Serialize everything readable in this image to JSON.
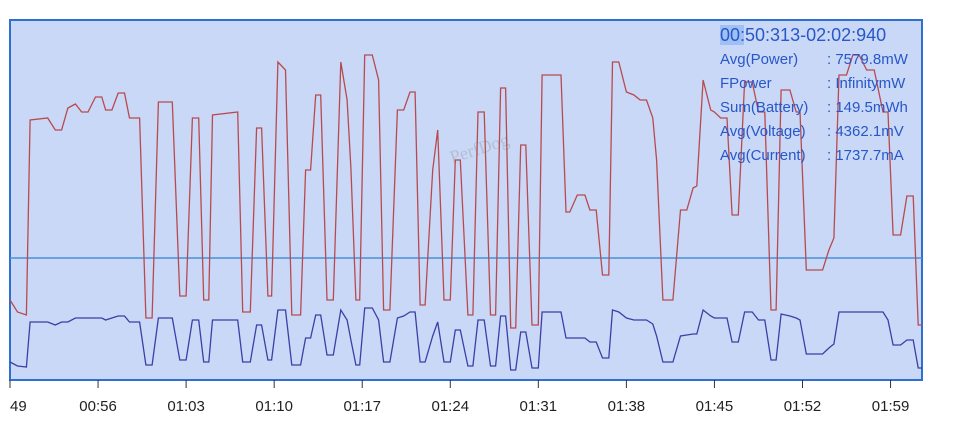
{
  "chart_data": {
    "type": "line",
    "summary_title": "00:50:313-02:02:940",
    "summary": [
      {
        "label": "Avg(Power)",
        "value": ": 7579.8mW"
      },
      {
        "label": "FPower",
        "value": ": InfinitymW"
      },
      {
        "label": "Sum(Battery)",
        "value": ": 149.5mWh"
      },
      {
        "label": "Avg(Voltage)",
        "value": ": 4362.1mV"
      },
      {
        "label": "Avg(Current)",
        "value": ": 1737.7mA"
      }
    ],
    "watermark": "PerfDog",
    "xlim": [
      49,
      121.5
    ],
    "xticks": [
      {
        "value": 49,
        "label": "49"
      },
      {
        "value": 56,
        "label": "00:56"
      },
      {
        "value": 63,
        "label": "01:03"
      },
      {
        "value": 70,
        "label": "01:10"
      },
      {
        "value": 77,
        "label": "01:17"
      },
      {
        "value": 84,
        "label": "01:24"
      },
      {
        "value": 91,
        "label": "01:31"
      },
      {
        "value": 98,
        "label": "01:38"
      },
      {
        "value": 105,
        "label": "01:45"
      },
      {
        "value": 112,
        "label": "01:52"
      },
      {
        "value": 119,
        "label": "01:59"
      }
    ],
    "ylim": [
      0,
      360
    ],
    "avg_line": {
      "value": 122,
      "color": "#4a90d9"
    },
    "x": [
      49.0,
      49.6,
      50.3,
      50.6,
      52.0,
      52.6,
      53.1,
      53.6,
      54.2,
      54.7,
      55.2,
      55.8,
      56.3,
      56.6,
      57.1,
      57.6,
      58.1,
      58.5,
      59.3,
      59.8,
      60.3,
      60.8,
      61.9,
      62.5,
      63.0,
      63.5,
      64.0,
      64.4,
      64.8,
      65.1,
      67.1,
      67.5,
      68.1,
      68.6,
      69.0,
      69.5,
      69.8,
      70.3,
      70.9,
      71.4,
      72.1,
      72.5,
      72.9,
      73.3,
      73.7,
      74.2,
      74.7,
      75.3,
      75.8,
      76.1,
      76.5,
      76.8,
      77.2,
      77.8,
      78.3,
      78.7,
      79.2,
      79.8,
      80.3,
      80.8,
      81.2,
      81.6,
      82.0,
      82.6,
      83.0,
      83.5,
      84.0,
      84.4,
      84.8,
      85.4,
      85.8,
      86.2,
      86.7,
      87.2,
      87.6,
      88.0,
      88.4,
      88.8,
      89.2,
      89.6,
      90.0,
      90.5,
      91.0,
      91.3,
      92.8,
      93.2,
      93.5,
      94.1,
      94.7,
      95.1,
      95.6,
      96.1,
      96.6,
      96.9,
      97.4,
      98.0,
      98.6,
      99.1,
      99.6,
      100.1,
      100.4,
      100.9,
      101.3,
      101.7,
      102.3,
      102.8,
      103.3,
      103.6,
      104.1,
      104.7,
      105.0,
      105.5,
      106.0,
      106.4,
      106.9,
      107.4,
      108.0,
      108.5,
      109.0,
      109.5,
      109.9,
      110.3,
      111.0,
      111.5,
      111.8,
      112.3,
      113.6,
      114.1,
      114.5,
      114.9,
      115.5,
      116.0,
      116.5,
      117.1,
      117.7,
      118.4,
      118.8,
      119.2,
      119.8,
      120.3,
      120.8,
      121.2,
      121.5
    ],
    "series": [
      {
        "name": "Power",
        "color": "#b84a4f",
        "values": [
          80,
          68,
          65,
          260,
          262,
          250,
          250,
          272,
          276,
          268,
          268,
          283,
          283,
          270,
          270,
          287,
          287,
          262,
          262,
          62,
          62,
          278,
          278,
          84,
          84,
          262,
          262,
          80,
          80,
          265,
          268,
          68,
          68,
          252,
          252,
          84,
          84,
          318,
          310,
          65,
          65,
          210,
          210,
          285,
          285,
          80,
          80,
          318,
          280,
          212,
          80,
          80,
          325,
          325,
          300,
          70,
          70,
          270,
          270,
          288,
          288,
          75,
          75,
          210,
          250,
          80,
          80,
          220,
          220,
          65,
          65,
          268,
          268,
          65,
          65,
          292,
          292,
          52,
          52,
          235,
          235,
          55,
          55,
          305,
          305,
          168,
          168,
          185,
          185,
          170,
          170,
          105,
          105,
          318,
          318,
          288,
          285,
          280,
          280,
          262,
          220,
          80,
          80,
          80,
          170,
          170,
          192,
          194,
          300,
          270,
          268,
          262,
          262,
          165,
          165,
          298,
          298,
          268,
          268,
          70,
          70,
          290,
          290,
          268,
          268,
          110,
          110,
          130,
          142,
          305,
          305,
          325,
          325,
          310,
          310,
          268,
          268,
          145,
          145,
          184,
          184,
          55,
          55
        ]
      },
      {
        "name": "Current",
        "color": "#3b3fa6",
        "values": [
          18,
          14,
          13,
          58,
          58,
          55,
          58,
          58,
          62,
          62,
          62,
          62,
          62,
          60,
          62,
          64,
          64,
          58,
          58,
          15,
          15,
          62,
          62,
          20,
          20,
          60,
          60,
          18,
          18,
          60,
          60,
          18,
          18,
          55,
          55,
          20,
          20,
          70,
          70,
          15,
          15,
          42,
          42,
          65,
          65,
          25,
          25,
          70,
          60,
          40,
          15,
          15,
          72,
          72,
          60,
          18,
          18,
          62,
          64,
          68,
          68,
          18,
          18,
          44,
          58,
          18,
          18,
          50,
          50,
          14,
          14,
          60,
          60,
          14,
          14,
          64,
          64,
          10,
          10,
          48,
          48,
          12,
          12,
          68,
          68,
          42,
          42,
          42,
          42,
          38,
          38,
          22,
          22,
          70,
          68,
          62,
          60,
          60,
          60,
          56,
          44,
          18,
          18,
          18,
          44,
          45,
          46,
          46,
          70,
          64,
          62,
          62,
          62,
          38,
          38,
          68,
          68,
          60,
          60,
          20,
          20,
          66,
          64,
          62,
          60,
          26,
          26,
          32,
          36,
          68,
          68,
          68,
          68,
          68,
          68,
          68,
          60,
          35,
          35,
          40,
          40,
          12,
          12
        ]
      }
    ]
  }
}
